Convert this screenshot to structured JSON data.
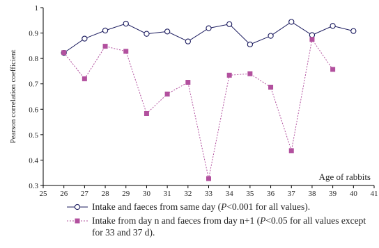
{
  "chart_data": {
    "type": "line",
    "title": "",
    "xlabel": "",
    "ylabel": "Pearson correlation coefficient",
    "annotation": "Age of rabbits",
    "xlim": [
      25,
      41
    ],
    "ylim": [
      0.3,
      1.0
    ],
    "xticks": [
      "25",
      "26",
      "27",
      "28",
      "29",
      "30",
      "31",
      "32",
      "33",
      "34",
      "35",
      "36",
      "37",
      "38",
      "39",
      "40",
      "41"
    ],
    "yticks": [
      "0.3",
      "0.4",
      "0.5",
      "0.6",
      "0.7",
      "0.8",
      "0.9",
      "1"
    ],
    "grid": false,
    "legend_position": "bottom",
    "series": [
      {
        "key": "same_day",
        "legend_before": "Intake and faeces from same day (",
        "legend_p": "P",
        "legend_after": "<0.001 for all values).",
        "color": "#1a1a5e",
        "marker": "circle-open",
        "line": "solid",
        "x": [
          26,
          27,
          28,
          29,
          30,
          31,
          32,
          33,
          34,
          35,
          36,
          37,
          38,
          39,
          40
        ],
        "y": [
          0.822,
          0.878,
          0.91,
          0.937,
          0.897,
          0.906,
          0.867,
          0.919,
          0.935,
          0.855,
          0.889,
          0.944,
          0.892,
          0.928,
          0.908
        ]
      },
      {
        "key": "next_day",
        "legend_before": "Intake from day n and faeces from day n+1 (",
        "legend_p": "P",
        "legend_after": "<0.05 for all values except for 33 and 37 d).",
        "color": "#b2509e",
        "marker": "square-filled",
        "line": "dashed",
        "x": [
          26,
          27,
          28,
          29,
          30,
          31,
          32,
          33,
          34,
          35,
          36,
          37,
          38,
          39
        ],
        "y": [
          0.823,
          0.72,
          0.848,
          0.828,
          0.583,
          0.66,
          0.706,
          0.327,
          0.734,
          0.74,
          0.687,
          0.437,
          0.875,
          0.757
        ]
      }
    ]
  }
}
